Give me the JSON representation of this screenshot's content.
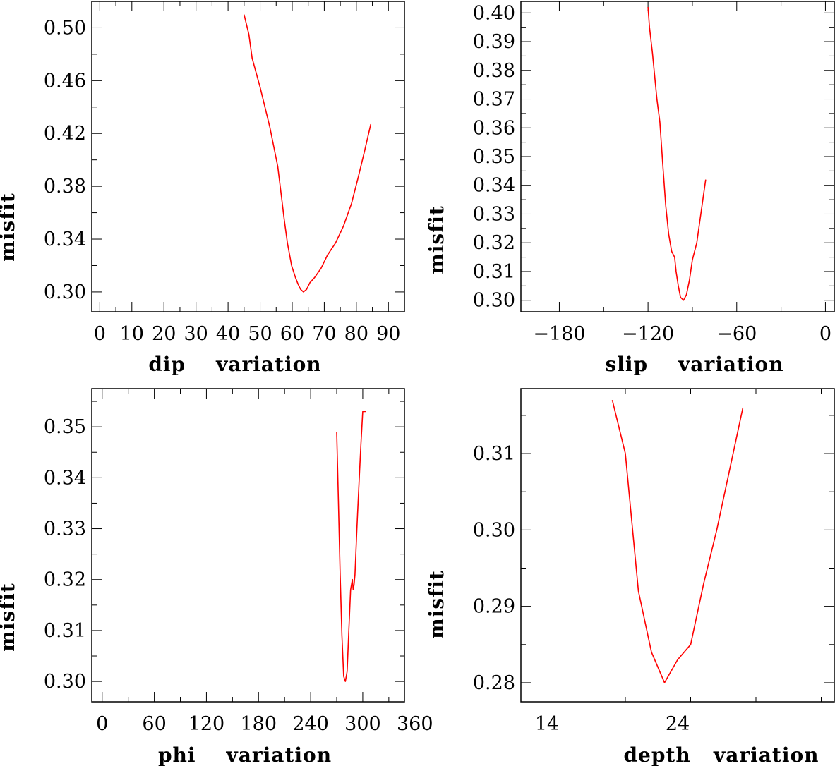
{
  "chart_data": [
    {
      "type": "line",
      "xlabel": "dip    variation",
      "ylabel": "misfit",
      "xlim": [
        -2.5,
        95
      ],
      "ylim": [
        0.285,
        0.52
      ],
      "xticks": [
        0,
        10,
        20,
        30,
        40,
        50,
        60,
        70,
        80,
        90
      ],
      "xtick_labels": [
        "0",
        "10",
        "20",
        "30",
        "40",
        "50",
        "60",
        "70",
        "80",
        "90"
      ],
      "yticks": [
        0.3,
        0.34,
        0.38,
        0.42,
        0.46,
        0.5
      ],
      "ytick_labels": [
        "0.30",
        "0.34",
        "0.38",
        "0.42",
        "0.46",
        "0.50"
      ],
      "grid": false,
      "line_color": "#ff0000",
      "series": [
        {
          "x": [
            45,
            46.5,
            47.5,
            50,
            53,
            55.5,
            56.5,
            57.5,
            58.5,
            59.8,
            61,
            61.8,
            62.6,
            63.5,
            64.5,
            65.5,
            67,
            69,
            71,
            73.5,
            76,
            78.5,
            80.5,
            82.5,
            84.5
          ],
          "y": [
            0.51,
            0.495,
            0.477,
            0.455,
            0.425,
            0.395,
            0.375,
            0.355,
            0.337,
            0.32,
            0.311,
            0.306,
            0.302,
            0.3,
            0.302,
            0.307,
            0.311,
            0.318,
            0.328,
            0.337,
            0.35,
            0.367,
            0.386,
            0.406,
            0.427
          ]
        }
      ]
    },
    {
      "type": "line",
      "xlabel": "slip    variation",
      "ylabel": "misfit",
      "xlim": [
        -206,
        6
      ],
      "ylim": [
        0.296,
        0.404
      ],
      "xticks": [
        -180,
        -120,
        -60,
        0
      ],
      "xtick_labels": [
        "−180",
        "−120",
        "−60",
        "0"
      ],
      "yticks": [
        0.3,
        0.31,
        0.32,
        0.33,
        0.34,
        0.35,
        0.36,
        0.37,
        0.38,
        0.39,
        0.4
      ],
      "ytick_labels": [
        "0.30",
        "0.31",
        "0.32",
        "0.33",
        "0.34",
        "0.35",
        "0.36",
        "0.37",
        "0.38",
        "0.39",
        "0.40"
      ],
      "grid": false,
      "line_color": "#ff0000",
      "series": [
        {
          "x": [
            -120,
            -119,
            -117,
            -114,
            -112,
            -110,
            -108,
            -106,
            -104,
            -102,
            -101,
            -99.5,
            -98,
            -96,
            -94,
            -92,
            -90,
            -87,
            -84,
            -81
          ],
          "y": [
            0.402,
            0.395,
            0.386,
            0.37,
            0.362,
            0.347,
            0.333,
            0.323,
            0.317,
            0.315,
            0.31,
            0.305,
            0.301,
            0.3,
            0.302,
            0.307,
            0.314,
            0.32,
            0.331,
            0.342
          ]
        }
      ]
    },
    {
      "type": "line",
      "xlabel": "phi    variation",
      "ylabel": "misfit",
      "xlim": [
        -12,
        348
      ],
      "ylim": [
        0.296,
        0.3575
      ],
      "xticks": [
        0,
        60,
        120,
        180,
        240,
        300,
        360
      ],
      "xtick_labels": [
        "0",
        "60",
        "120",
        "180",
        "240",
        "300",
        "360"
      ],
      "yticks": [
        0.3,
        0.31,
        0.32,
        0.33,
        0.34,
        0.35
      ],
      "ytick_labels": [
        "0.30",
        "0.31",
        "0.32",
        "0.33",
        "0.34",
        "0.35"
      ],
      "grid": false,
      "line_color": "#ff0000",
      "series": [
        {
          "x": [
            270,
            272,
            274,
            276,
            278,
            280,
            282,
            284,
            286,
            288,
            289,
            290,
            291,
            292,
            293,
            294,
            296,
            298,
            300,
            302,
            304
          ],
          "y": [
            0.349,
            0.335,
            0.321,
            0.309,
            0.301,
            0.3,
            0.302,
            0.31,
            0.318,
            0.32,
            0.318,
            0.319,
            0.321,
            0.325,
            0.329,
            0.333,
            0.34,
            0.347,
            0.353,
            0.353,
            0.353
          ]
        }
      ]
    },
    {
      "type": "line",
      "xlabel": "depth   variation",
      "ylabel": "misfit",
      "xlim": [
        12,
        36
      ],
      "ylim": [
        0.2775,
        0.3185
      ],
      "xticks": [
        14,
        24
      ],
      "xtick_labels": [
        "14",
        "24"
      ],
      "yticks": [
        0.28,
        0.29,
        0.3,
        0.31
      ],
      "ytick_labels": [
        "0.28",
        "0.29",
        "0.30",
        "0.31"
      ],
      "grid": false,
      "line_color": "#ff0000",
      "series": [
        {
          "x": [
            19,
            20,
            21,
            22,
            23,
            24,
            25,
            26,
            27,
            28,
            29
          ],
          "y": [
            0.317,
            0.31,
            0.292,
            0.284,
            0.28,
            0.283,
            0.285,
            0.293,
            0.3,
            0.308,
            0.316
          ]
        }
      ]
    }
  ]
}
